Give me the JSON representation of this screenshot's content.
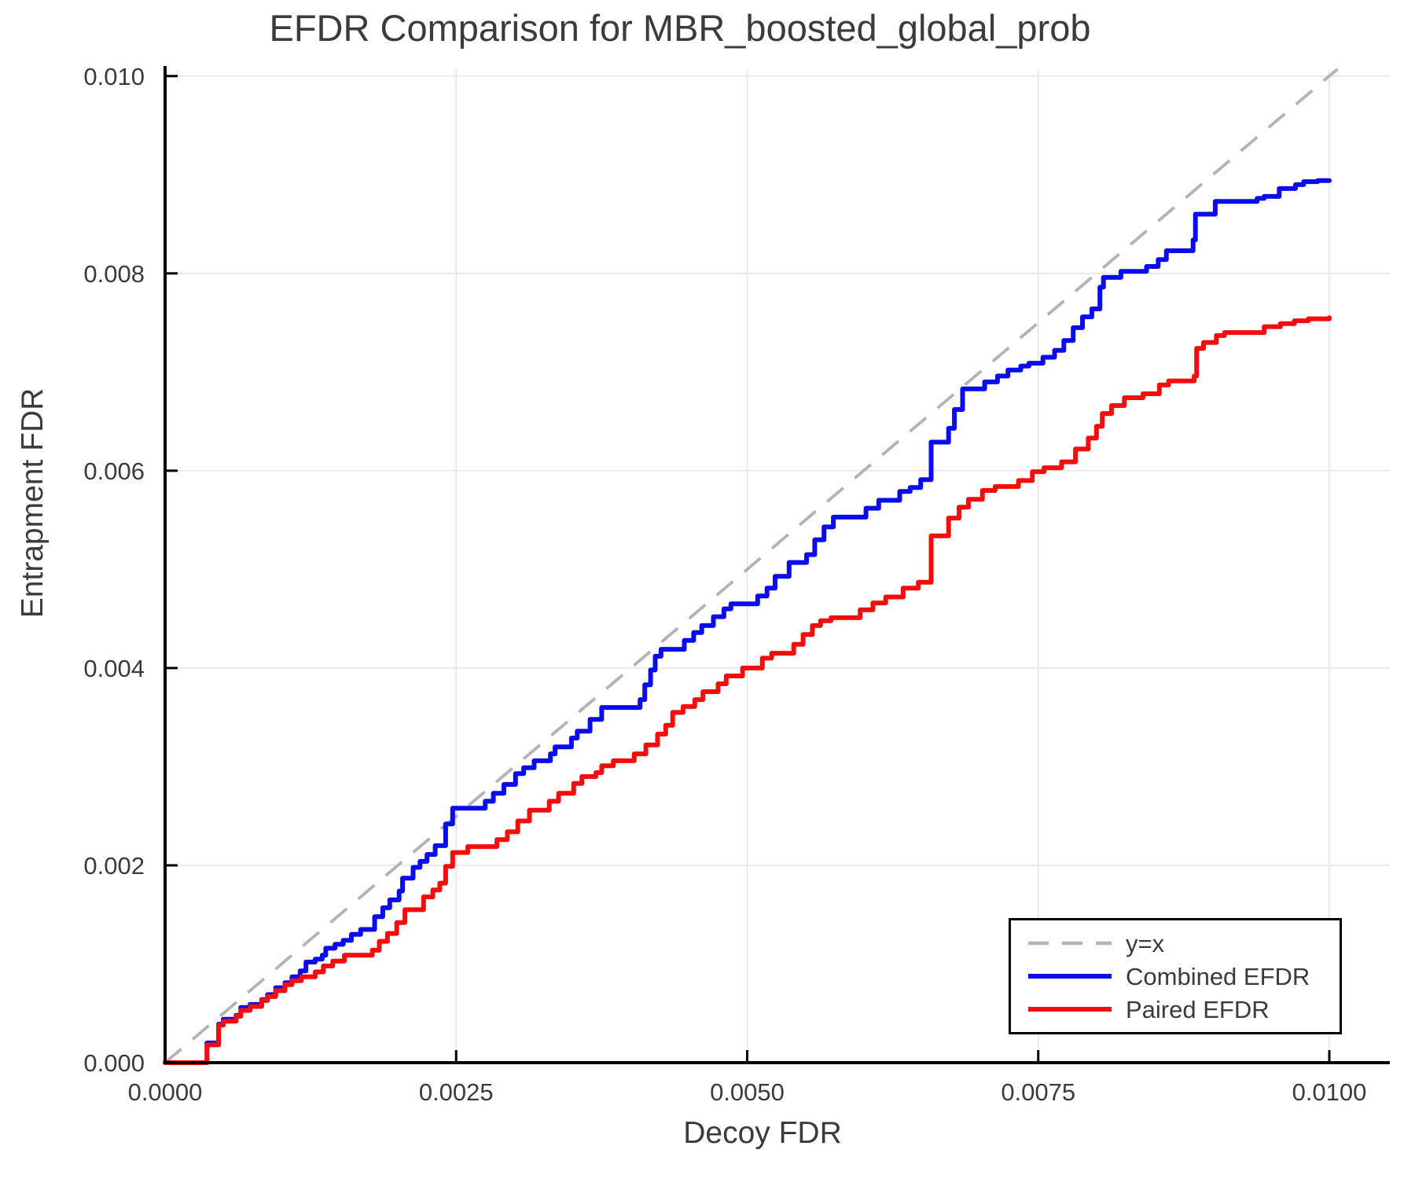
{
  "title": "EFDR Comparison for MBR_boosted_global_prob",
  "colors": {
    "reference": "#b3b3b3",
    "combined": "#0b0bef",
    "paired": "#f50d0d",
    "grid": "#e5e5e5",
    "spine": "#000000",
    "text": "#3b3b3b",
    "background": "#ffffff"
  },
  "legend": {
    "items": [
      {
        "label": "y=x",
        "color": "#b3b3b3",
        "style": "dashed"
      },
      {
        "label": "Combined EFDR",
        "color": "#0b0bef",
        "style": "solid"
      },
      {
        "label": "Paired EFDR",
        "color": "#f50d0d",
        "style": "solid"
      }
    ]
  },
  "chart_data": {
    "type": "line",
    "title": "EFDR Comparison for MBR_boosted_global_prob",
    "xlabel": "Decoy FDR",
    "ylabel": "Entrapment FDR",
    "xlim": [
      0,
      0.01052
    ],
    "ylim": [
      0,
      0.01007
    ],
    "grid": true,
    "legend_position": "bottom-right",
    "x_ticks": {
      "values": [
        0,
        0.0025,
        0.005,
        0.0075,
        0.01
      ],
      "labels": [
        "0.0000",
        "0.0025",
        "0.0050",
        "0.0075",
        "0.0100"
      ]
    },
    "y_ticks": {
      "values": [
        0,
        0.002,
        0.004,
        0.006,
        0.008,
        0.01
      ],
      "labels": [
        "0.000",
        "0.002",
        "0.004",
        "0.006",
        "0.008",
        "0.010"
      ]
    },
    "series": [
      {
        "name": "y=x",
        "type": "reference",
        "style": "dashed",
        "color": "#b3b3b3",
        "points": [
          [
            0,
            0
          ],
          [
            0.01007,
            0.01007
          ]
        ]
      },
      {
        "name": "Combined EFDR",
        "type": "step",
        "style": "solid",
        "color": "#0b0bef",
        "points": [
          [
            0,
            0
          ],
          [
            0.00035,
            0
          ],
          [
            0.00036,
            0.0002
          ],
          [
            0.00046,
            0.00039
          ],
          [
            0.0005,
            0.00044
          ],
          [
            0.00061,
            0.00048
          ],
          [
            0.00065,
            0.00056
          ],
          [
            0.00073,
            0.00059
          ],
          [
            0.00083,
            0.00064
          ],
          [
            0.00088,
            0.00069
          ],
          [
            0.00095,
            0.00076
          ],
          [
            0.00103,
            0.00081
          ],
          [
            0.00109,
            0.00087
          ],
          [
            0.00116,
            0.00093
          ],
          [
            0.00121,
            0.00102
          ],
          [
            0.00129,
            0.00105
          ],
          [
            0.00135,
            0.00109
          ],
          [
            0.00138,
            0.00116
          ],
          [
            0.00146,
            0.0012
          ],
          [
            0.00153,
            0.00124
          ],
          [
            0.0016,
            0.0013
          ],
          [
            0.00168,
            0.00135
          ],
          [
            0.0018,
            0.00148
          ],
          [
            0.00187,
            0.00157
          ],
          [
            0.00193,
            0.00165
          ],
          [
            0.00201,
            0.00174
          ],
          [
            0.00204,
            0.00187
          ],
          [
            0.00213,
            0.00198
          ],
          [
            0.00219,
            0.00204
          ],
          [
            0.00225,
            0.00211
          ],
          [
            0.00232,
            0.0022
          ],
          [
            0.00241,
            0.00242
          ],
          [
            0.00247,
            0.00258
          ],
          [
            0.00275,
            0.00265
          ],
          [
            0.00282,
            0.00273
          ],
          [
            0.00291,
            0.00282
          ],
          [
            0.00301,
            0.00293
          ],
          [
            0.00308,
            0.00299
          ],
          [
            0.00317,
            0.00306
          ],
          [
            0.00331,
            0.00313
          ],
          [
            0.00335,
            0.0032
          ],
          [
            0.00349,
            0.00329
          ],
          [
            0.00354,
            0.00336
          ],
          [
            0.00365,
            0.00348
          ],
          [
            0.00375,
            0.0036
          ],
          [
            0.00408,
            0.00368
          ],
          [
            0.00412,
            0.00383
          ],
          [
            0.00417,
            0.00398
          ],
          [
            0.00421,
            0.00412
          ],
          [
            0.00426,
            0.00419
          ],
          [
            0.00446,
            0.00428
          ],
          [
            0.00454,
            0.00436
          ],
          [
            0.00461,
            0.00443
          ],
          [
            0.00471,
            0.00452
          ],
          [
            0.0048,
            0.0046
          ],
          [
            0.00486,
            0.00465
          ],
          [
            0.00509,
            0.00473
          ],
          [
            0.00517,
            0.00481
          ],
          [
            0.00524,
            0.00493
          ],
          [
            0.00536,
            0.00507
          ],
          [
            0.00551,
            0.00515
          ],
          [
            0.00558,
            0.0053
          ],
          [
            0.00566,
            0.00543
          ],
          [
            0.00574,
            0.00553
          ],
          [
            0.00602,
            0.00562
          ],
          [
            0.00613,
            0.0057
          ],
          [
            0.00631,
            0.00579
          ],
          [
            0.0064,
            0.00583
          ],
          [
            0.00649,
            0.00591
          ],
          [
            0.00658,
            0.00629
          ],
          [
            0.00673,
            0.00643
          ],
          [
            0.00678,
            0.00662
          ],
          [
            0.00685,
            0.00683
          ],
          [
            0.00704,
            0.0069
          ],
          [
            0.00715,
            0.00696
          ],
          [
            0.00724,
            0.00702
          ],
          [
            0.00735,
            0.00706
          ],
          [
            0.00742,
            0.00709
          ],
          [
            0.00754,
            0.00715
          ],
          [
            0.00764,
            0.00722
          ],
          [
            0.00772,
            0.00732
          ],
          [
            0.0078,
            0.00745
          ],
          [
            0.00788,
            0.00756
          ],
          [
            0.00796,
            0.00764
          ],
          [
            0.00803,
            0.00786
          ],
          [
            0.00806,
            0.00796
          ],
          [
            0.00821,
            0.00802
          ],
          [
            0.00843,
            0.00807
          ],
          [
            0.00853,
            0.00814
          ],
          [
            0.0086,
            0.00823
          ],
          [
            0.00883,
            0.00834
          ],
          [
            0.00885,
            0.0086
          ],
          [
            0.00902,
            0.00873
          ],
          [
            0.00938,
            0.00876
          ],
          [
            0.00944,
            0.00878
          ],
          [
            0.00957,
            0.00886
          ],
          [
            0.00971,
            0.0089
          ],
          [
            0.00978,
            0.00893
          ],
          [
            0.0099,
            0.00894
          ],
          [
            0.01,
            0.00894
          ]
        ]
      },
      {
        "name": "Paired EFDR",
        "type": "step",
        "style": "solid",
        "color": "#f50d0d",
        "points": [
          [
            0,
            0
          ],
          [
            0.00035,
            0
          ],
          [
            0.00036,
            0.00018
          ],
          [
            0.00046,
            0.00038
          ],
          [
            0.0005,
            0.00042
          ],
          [
            0.00061,
            0.00047
          ],
          [
            0.00065,
            0.00053
          ],
          [
            0.00073,
            0.00057
          ],
          [
            0.00083,
            0.00063
          ],
          [
            0.00088,
            0.00067
          ],
          [
            0.00095,
            0.00073
          ],
          [
            0.00103,
            0.00079
          ],
          [
            0.00109,
            0.00083
          ],
          [
            0.00117,
            0.00087
          ],
          [
            0.00129,
            0.00092
          ],
          [
            0.00136,
            0.00098
          ],
          [
            0.00144,
            0.00103
          ],
          [
            0.00154,
            0.00109
          ],
          [
            0.00178,
            0.00114
          ],
          [
            0.00184,
            0.00123
          ],
          [
            0.00191,
            0.00131
          ],
          [
            0.00199,
            0.00142
          ],
          [
            0.00206,
            0.00155
          ],
          [
            0.00222,
            0.00168
          ],
          [
            0.0023,
            0.00175
          ],
          [
            0.00236,
            0.00182
          ],
          [
            0.00241,
            0.00199
          ],
          [
            0.00247,
            0.00213
          ],
          [
            0.0026,
            0.00219
          ],
          [
            0.00285,
            0.00226
          ],
          [
            0.00294,
            0.00234
          ],
          [
            0.00303,
            0.00245
          ],
          [
            0.00313,
            0.00256
          ],
          [
            0.0033,
            0.00265
          ],
          [
            0.00338,
            0.00273
          ],
          [
            0.00351,
            0.00283
          ],
          [
            0.00358,
            0.0029
          ],
          [
            0.0037,
            0.00294
          ],
          [
            0.00375,
            0.00301
          ],
          [
            0.00385,
            0.00306
          ],
          [
            0.00403,
            0.00313
          ],
          [
            0.00413,
            0.00322
          ],
          [
            0.00423,
            0.00333
          ],
          [
            0.0043,
            0.00342
          ],
          [
            0.00436,
            0.00355
          ],
          [
            0.00445,
            0.00361
          ],
          [
            0.00455,
            0.00368
          ],
          [
            0.00462,
            0.00376
          ],
          [
            0.00475,
            0.00384
          ],
          [
            0.00482,
            0.00392
          ],
          [
            0.00496,
            0.004
          ],
          [
            0.00513,
            0.0041
          ],
          [
            0.00521,
            0.00415
          ],
          [
            0.0054,
            0.00424
          ],
          [
            0.00548,
            0.00434
          ],
          [
            0.00556,
            0.00443
          ],
          [
            0.00563,
            0.00448
          ],
          [
            0.00572,
            0.00451
          ],
          [
            0.00597,
            0.00459
          ],
          [
            0.00608,
            0.00466
          ],
          [
            0.00619,
            0.00472
          ],
          [
            0.00634,
            0.00481
          ],
          [
            0.00647,
            0.00487
          ],
          [
            0.00658,
            0.00534
          ],
          [
            0.00673,
            0.00552
          ],
          [
            0.00682,
            0.00563
          ],
          [
            0.0069,
            0.00571
          ],
          [
            0.00702,
            0.0058
          ],
          [
            0.00713,
            0.00584
          ],
          [
            0.00733,
            0.0059
          ],
          [
            0.00745,
            0.00599
          ],
          [
            0.00755,
            0.00603
          ],
          [
            0.0077,
            0.00609
          ],
          [
            0.00782,
            0.00622
          ],
          [
            0.00793,
            0.00633
          ],
          [
            0.008,
            0.00645
          ],
          [
            0.00805,
            0.00658
          ],
          [
            0.00813,
            0.00666
          ],
          [
            0.00824,
            0.00674
          ],
          [
            0.0084,
            0.00678
          ],
          [
            0.00854,
            0.00687
          ],
          [
            0.00862,
            0.00691
          ],
          [
            0.00884,
            0.00696
          ],
          [
            0.00886,
            0.00724
          ],
          [
            0.00892,
            0.0073
          ],
          [
            0.00903,
            0.00737
          ],
          [
            0.0091,
            0.0074
          ],
          [
            0.00944,
            0.00746
          ],
          [
            0.00958,
            0.00749
          ],
          [
            0.0097,
            0.00752
          ],
          [
            0.00982,
            0.00754
          ],
          [
            0.01,
            0.00755
          ]
        ]
      }
    ]
  }
}
